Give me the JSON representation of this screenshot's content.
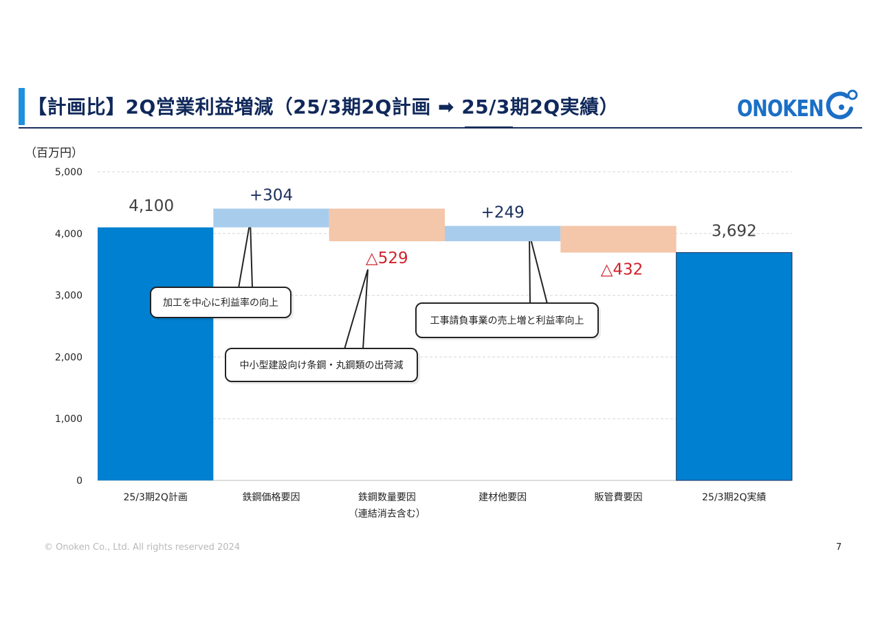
{
  "title": "【計画比】2Q営業利益増減（25/3期2Q計画 ➡ 25/3期2Q実績）",
  "logo_text": "ONOKEN",
  "unit": "（百万円）",
  "footer": "© Onoken Co., Ltd. All rights reserved 2024",
  "page_number": "7",
  "colors": {
    "title": "#10285a",
    "total_bar": "#0080d0",
    "increase_bar": "#a8ccec",
    "decrease_bar": "#f4c6aa",
    "increase_label": "#1a2e5c",
    "decrease_label": "#d0202a",
    "total_label": "#404040",
    "logo": "#1b6fc6"
  },
  "chart_data": {
    "type": "bar",
    "subtype": "waterfall",
    "ylim": [
      0,
      5000
    ],
    "yticks": [
      "0",
      "1,000",
      "2,000",
      "3,000",
      "4,000",
      "5,000"
    ],
    "ytick_values": [
      0,
      1000,
      2000,
      3000,
      4000,
      5000
    ],
    "grid": true,
    "categories": [
      {
        "label": "25/3期2Q計画",
        "sublabel": ""
      },
      {
        "label": "鉄鋼価格要因",
        "sublabel": ""
      },
      {
        "label": "鉄鋼数量要因",
        "sublabel": "（連結消去含む）"
      },
      {
        "label": "建材他要因",
        "sublabel": ""
      },
      {
        "label": "販管費要因",
        "sublabel": ""
      },
      {
        "label": "25/3期2Q実績",
        "sublabel": ""
      }
    ],
    "bars": [
      {
        "kind": "total",
        "start": 0,
        "end": 4100,
        "label": "4,100"
      },
      {
        "kind": "increase",
        "start": 4100,
        "end": 4404,
        "label": "+304"
      },
      {
        "kind": "decrease",
        "start": 4404,
        "end": 3875,
        "label": "△529"
      },
      {
        "kind": "increase",
        "start": 3875,
        "end": 4124,
        "label": "+249"
      },
      {
        "kind": "decrease",
        "start": 4124,
        "end": 3692,
        "label": "△432"
      },
      {
        "kind": "total",
        "start": 0,
        "end": 3692,
        "label": "3,692"
      }
    ],
    "annotations": [
      "加工を中心に利益率の向上",
      "中小型建設向け条鋼・丸鋼類の出荷減",
      "工事請負事業の売上増と利益率向上"
    ]
  }
}
